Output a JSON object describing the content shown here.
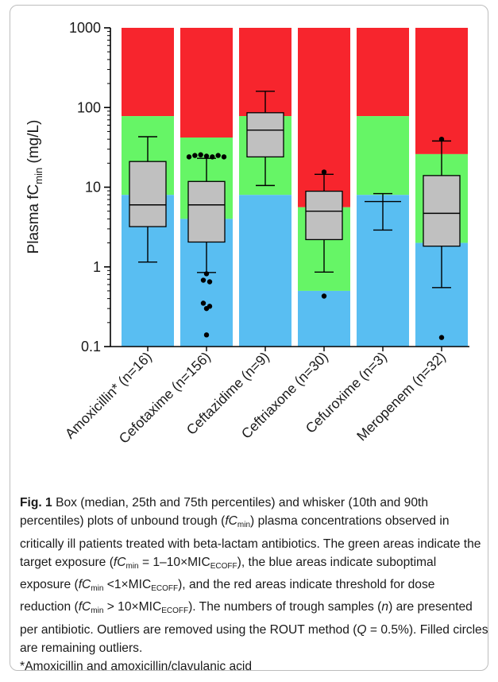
{
  "chart_data": {
    "type": "box",
    "ylabel": "Plasma fC",
    "ylabel_sub": "min",
    "ylabel_unit": " (mg/L)",
    "yscale": "log",
    "ylim": [
      0.1,
      1000
    ],
    "yticks": [
      {
        "value": 0.1,
        "label": "0.1"
      },
      {
        "value": 1,
        "label": "1"
      },
      {
        "value": 10,
        "label": "10"
      },
      {
        "value": 100,
        "label": "100"
      },
      {
        "value": 1000,
        "label": "1000"
      }
    ],
    "zone_colors": {
      "suboptimal": "#59bef2",
      "target": "#66f566",
      "reduction": "#f7252d",
      "box": "#c0c0c0"
    },
    "categories": [
      {
        "label": "Amoxicillin* (n=16)",
        "blue_top": 8,
        "green_top": 78,
        "q1": 3.2,
        "median": 6.0,
        "q3": 21,
        "whisker_low": 1.15,
        "whisker_high": 43,
        "outliers": []
      },
      {
        "label": "Cefotaxime (n=156)",
        "blue_top": 4,
        "green_top": 42,
        "q1": 2.05,
        "median": 6.0,
        "q3": 11.8,
        "whisker_low": 0.85,
        "whisker_high": 23,
        "outliers": [
          22,
          24,
          25,
          25.5,
          24.5,
          24,
          25,
          24,
          0.82,
          0.68,
          0.65,
          0.35,
          0.32,
          0.3,
          0.14
        ]
      },
      {
        "label": "Ceftazidime (n=9)",
        "blue_top": 8,
        "green_top": 78,
        "q1": 24,
        "median": 52,
        "q3": 86,
        "whisker_low": 10.5,
        "whisker_high": 160,
        "outliers": []
      },
      {
        "label": "Ceftriaxone (n=30)",
        "blue_top": 0.5,
        "green_top": 5.6,
        "q1": 2.2,
        "median": 5.0,
        "q3": 8.9,
        "whisker_low": 0.86,
        "whisker_high": 14.5,
        "outliers": [
          15.5,
          0.43
        ]
      },
      {
        "label": "Cefuroxime (n=3)",
        "blue_top": 8,
        "green_top": 78,
        "q1": null,
        "median": 6.6,
        "q3": null,
        "whisker_low": 2.9,
        "whisker_high": 8.3,
        "outliers": []
      },
      {
        "label": "Meropenem (n=32)",
        "blue_top": 2,
        "green_top": 26,
        "q1": 1.82,
        "median": 4.7,
        "q3": 14,
        "whisker_low": 0.55,
        "whisker_high": 38,
        "outliers": [
          40,
          0.13
        ]
      }
    ]
  },
  "caption": {
    "fig_label": "Fig. 1",
    "t1": " Box (median, 25th and 75th percentiles) and whisker (10th and 90th percentiles) plots of unbound trough (",
    "fc": "fC",
    "min": "min",
    "t2": ") plasma concentrations observed in critically ill patients treated with beta-lactam antibiotics. The green areas indicate the target exposure (",
    "t3": " = 1–10×MIC",
    "ecoff": "ECOFF",
    "t4": "), the blue areas indicate suboptimal exposure (",
    "t5": " <1×MIC",
    "t6": "), and the red areas indicate threshold for dose reduction (",
    "t7": " > 10×MIC",
    "t8": "). The numbers of trough samples (",
    "n": "n",
    "t9": ") are presented per antibiotic. Outliers are removed using the ROUT method (",
    "q": "Q",
    "t10": " = 0.5%). Filled circles are remaining outliers.",
    "footnote": "*Amoxicillin and amoxicillin/clavulanic acid"
  }
}
